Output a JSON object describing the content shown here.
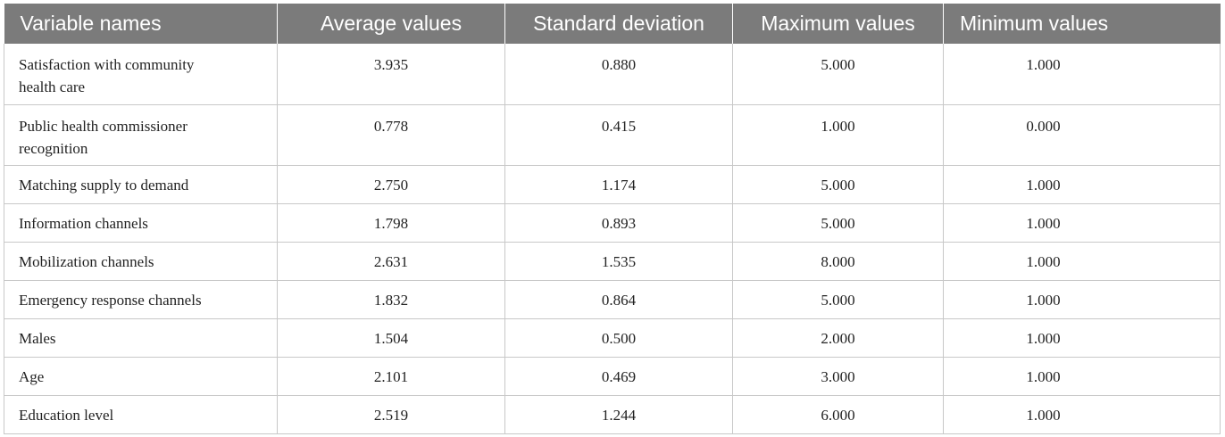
{
  "table": {
    "headers": [
      "Variable names",
      "Average values",
      "Standard deviation",
      "Maximum values",
      "Minimum values"
    ],
    "rows": [
      {
        "name_line1": "Satisfaction with community",
        "name_line2": "health care",
        "avg": "3.935",
        "sd": "0.880",
        "max": "5.000",
        "min": "1.000"
      },
      {
        "name_line1": "Public health commissioner",
        "name_line2": "recognition",
        "avg": "0.778",
        "sd": "0.415",
        "max": "1.000",
        "min": "0.000"
      },
      {
        "name_line1": "Matching supply to demand",
        "name_line2": "",
        "avg": "2.750",
        "sd": "1.174",
        "max": "5.000",
        "min": "1.000"
      },
      {
        "name_line1": "Information channels",
        "name_line2": "",
        "avg": "1.798",
        "sd": "0.893",
        "max": "5.000",
        "min": "1.000"
      },
      {
        "name_line1": "Mobilization channels",
        "name_line2": "",
        "avg": "2.631",
        "sd": "1.535",
        "max": "8.000",
        "min": "1.000"
      },
      {
        "name_line1": "Emergency response channels",
        "name_line2": "",
        "avg": "1.832",
        "sd": "0.864",
        "max": "5.000",
        "min": "1.000"
      },
      {
        "name_line1": "Males",
        "name_line2": "",
        "avg": "1.504",
        "sd": "0.500",
        "max": "2.000",
        "min": "1.000"
      },
      {
        "name_line1": "Age",
        "name_line2": "",
        "avg": "2.101",
        "sd": "0.469",
        "max": "3.000",
        "min": "1.000"
      },
      {
        "name_line1": "Education level",
        "name_line2": "",
        "avg": "2.519",
        "sd": "1.244",
        "max": "6.000",
        "min": "1.000"
      }
    ]
  },
  "colors": {
    "header_bg": "#7b7b7b",
    "header_text": "#ffffff",
    "grid": "#c8c8c8",
    "body_text": "#222222"
  }
}
